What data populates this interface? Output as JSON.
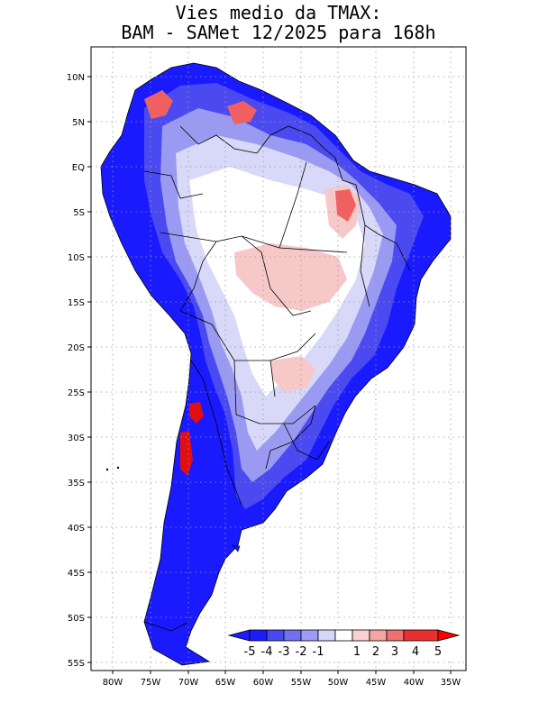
{
  "title": {
    "line1": "Vies medio da TMAX:",
    "line2": "BAM - SAMet 12/2025  para 168h"
  },
  "map": {
    "lat_labels": [
      "10N",
      "5N",
      "EQ",
      "5S",
      "10S",
      "15S",
      "20S",
      "25S",
      "30S",
      "35S",
      "40S",
      "45S",
      "50S",
      "55S"
    ],
    "lon_labels": [
      "80W",
      "75W",
      "70W",
      "65W",
      "60W",
      "55W",
      "50W",
      "45W",
      "40W",
      "35W"
    ],
    "colorbar": {
      "labels": [
        "-5",
        "-4",
        "-3",
        "-2",
        "-1",
        "1",
        "2",
        "3",
        "4",
        "5"
      ],
      "colors": [
        "#1c1cff",
        "#4848f0",
        "#7070f0",
        "#9c9cf4",
        "#d6d6f8",
        "#ffffff",
        "#fad0d0",
        "#f4a4a4",
        "#ee7070",
        "#e83030",
        "#ff0000"
      ]
    },
    "fill_colors": {
      "ocean": "#ffffff",
      "strong_blue": "#1a1aff",
      "blue": "#4a4af0",
      "light_blue": "#9a9af2",
      "pale_blue": "#d8d8f8",
      "white": "#ffffff",
      "pink": "#f7c8c8",
      "red": "#f06060",
      "deep_red": "#e01010"
    }
  }
}
